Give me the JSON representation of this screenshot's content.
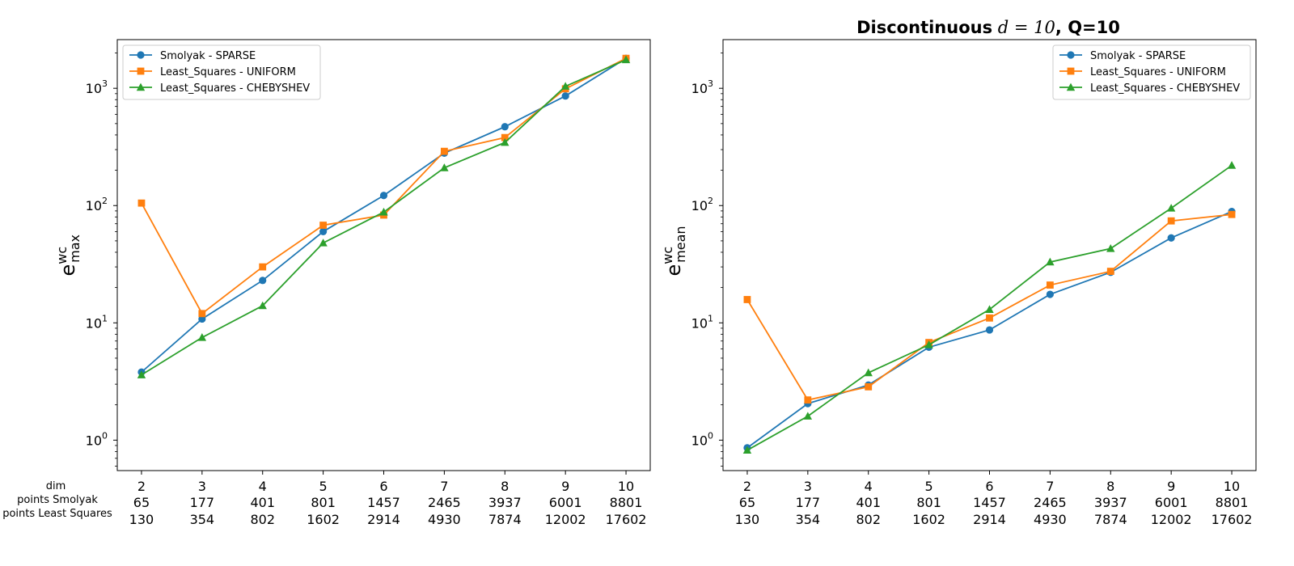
{
  "figure": {
    "title_bold": "Discontinuous",
    "title_math": "d = 10",
    "title_tail": ", Q=10"
  },
  "x_axis": {
    "row_labels": [
      "dim",
      "points Smolyak",
      "points Least Squares"
    ],
    "dim": [
      "2",
      "3",
      "4",
      "5",
      "6",
      "7",
      "8",
      "9",
      "10"
    ],
    "points_smolyak": [
      "65",
      "177",
      "401",
      "801",
      "1457",
      "2465",
      "3937",
      "6001",
      "8801"
    ],
    "points_least_squares": [
      "130",
      "354",
      "802",
      "1602",
      "2914",
      "4930",
      "7874",
      "12002",
      "17602"
    ]
  },
  "styles": {
    "series_colors": [
      "#1f77b4",
      "#ff7f0e",
      "#2ca02c"
    ],
    "series_markers": [
      "circle",
      "square",
      "triangle"
    ]
  },
  "chart_data": [
    {
      "type": "line",
      "ylabel": "e",
      "ylabel_sup": "wc",
      "ylabel_sub": "max",
      "y_scale": "log",
      "ylim": [
        0.55,
        2600
      ],
      "y_ticks": [
        1,
        10,
        100,
        1000
      ],
      "y_tick_labels": [
        {
          "base": "10",
          "exp": "0"
        },
        {
          "base": "10",
          "exp": "1"
        },
        {
          "base": "10",
          "exp": "2"
        },
        {
          "base": "10",
          "exp": "3"
        }
      ],
      "grid": false,
      "legend_position": "top-left",
      "x": [
        2,
        3,
        4,
        5,
        6,
        7,
        8,
        9,
        10
      ],
      "xlim": [
        1.6,
        10.4
      ],
      "series": [
        {
          "name": "Smolyak - SPARSE",
          "values": [
            3.8,
            10.8,
            23,
            60,
            122,
            280,
            470,
            860,
            1800
          ]
        },
        {
          "name": "Least_Squares - UNIFORM",
          "values": [
            105,
            12,
            30,
            68,
            83,
            290,
            380,
            990,
            1800
          ]
        },
        {
          "name": "Least_Squares - CHEBYSHEV",
          "values": [
            3.6,
            7.5,
            14,
            48,
            88,
            210,
            345,
            1040,
            1750
          ]
        }
      ]
    },
    {
      "type": "line",
      "ylabel": "e",
      "ylabel_sup": "wc",
      "ylabel_sub": "mean",
      "y_scale": "log",
      "ylim": [
        0.55,
        2600
      ],
      "y_ticks": [
        1,
        10,
        100,
        1000
      ],
      "y_tick_labels": [
        {
          "base": "10",
          "exp": "0"
        },
        {
          "base": "10",
          "exp": "1"
        },
        {
          "base": "10",
          "exp": "2"
        },
        {
          "base": "10",
          "exp": "3"
        }
      ],
      "grid": false,
      "legend_position": "top-right",
      "x": [
        2,
        3,
        4,
        5,
        6,
        7,
        8,
        9,
        10
      ],
      "xlim": [
        1.6,
        10.4
      ],
      "series": [
        {
          "name": "Smolyak - SPARSE",
          "values": [
            0.86,
            2.05,
            2.95,
            6.2,
            8.7,
            17.5,
            27,
            53,
            89
          ]
        },
        {
          "name": "Least_Squares - UNIFORM",
          "values": [
            15.8,
            2.2,
            2.85,
            6.8,
            11,
            21,
            27.5,
            74,
            84
          ]
        },
        {
          "name": "Least_Squares - CHEBYSHEV",
          "values": [
            0.82,
            1.6,
            3.75,
            6.5,
            13,
            33,
            43,
            95,
            220
          ]
        }
      ]
    }
  ]
}
